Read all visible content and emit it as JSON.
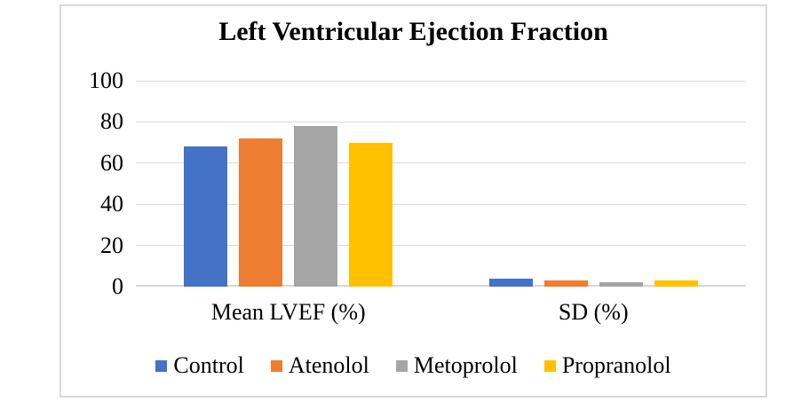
{
  "chart_data": {
    "type": "bar",
    "title": "Left Ventricular Ejection Fraction",
    "categories": [
      "Mean LVEF (%)",
      "SD (%)"
    ],
    "series": [
      {
        "name": "Control",
        "color": "#4472C4",
        "values": [
          68,
          4
        ]
      },
      {
        "name": "Atenolol",
        "color": "#ED7D31",
        "values": [
          72,
          3
        ]
      },
      {
        "name": "Metoprolol",
        "color": "#A5A5A5",
        "values": [
          78,
          2
        ]
      },
      {
        "name": "Propranolol",
        "color": "#FFC000",
        "values": [
          70,
          3
        ]
      }
    ],
    "xlabel": "",
    "ylabel": "",
    "ylim": [
      0,
      100
    ],
    "yticks": [
      0,
      20,
      40,
      60,
      80,
      100
    ],
    "grid": true,
    "legend_position": "bottom"
  },
  "colors": {
    "gridline": "#D9D9D9",
    "baseline": "#D6D6D6",
    "frame_border": "#D9D9D9",
    "text": "#000000",
    "background": "#FFFFFF"
  }
}
